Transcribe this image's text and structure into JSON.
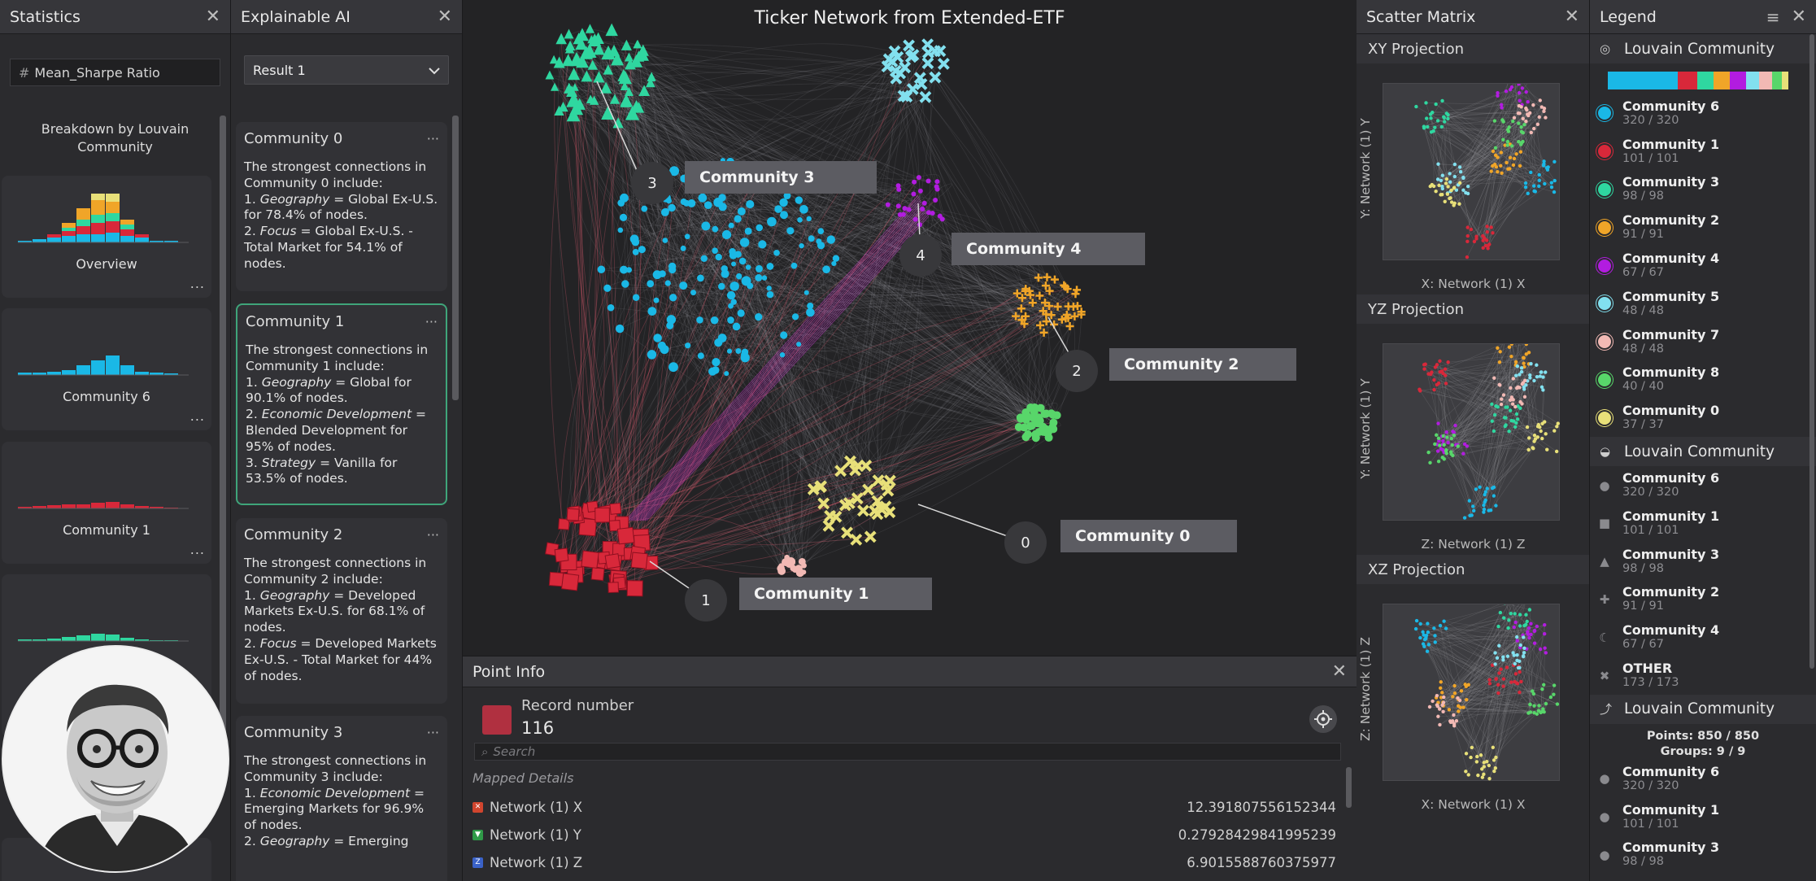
{
  "statistics": {
    "title": "Statistics",
    "field": "Mean_Sharpe Ratio",
    "breakdown_title": "Breakdown by Louvain Community",
    "cards": [
      {
        "label": "Overview"
      },
      {
        "label": "Community 6"
      },
      {
        "label": "Community 1"
      },
      {
        "label": ""
      }
    ],
    "more": "..."
  },
  "xai": {
    "title": "Explainable AI",
    "result_select": "Result 1",
    "communities": [
      {
        "name": "Community 0",
        "intro": "The strongest connections in Community 0 include:",
        "items": [
          {
            "num": "1.",
            "key": "Geography",
            "value": "Global Ex-U.S.",
            "pct": "for 78.4% of nodes."
          },
          {
            "num": "2.",
            "key": "Focus",
            "value": "Global Ex-U.S. - Total Market",
            "pct": "for 54.1% of nodes."
          }
        ]
      },
      {
        "name": "Community 1",
        "intro": "The strongest connections in Community 1 include:",
        "items": [
          {
            "num": "1.",
            "key": "Geography",
            "value": "Global",
            "pct": "for 90.1% of nodes."
          },
          {
            "num": "2.",
            "key": "Economic Development",
            "value": "Blended Development",
            "pct": "for 95% of nodes."
          },
          {
            "num": "3.",
            "key": "Strategy",
            "value": "Vanilla",
            "pct": "for 53.5% of nodes."
          }
        ]
      },
      {
        "name": "Community 2",
        "intro": "The strongest connections in Community 2 include:",
        "items": [
          {
            "num": "1.",
            "key": "Geography",
            "value": "Developed Markets Ex-U.S.",
            "pct": "for 68.1% of nodes."
          },
          {
            "num": "2.",
            "key": "Focus",
            "value": "Developed Markets Ex-U.S. - Total Market",
            "pct": "for 44% of nodes."
          }
        ]
      },
      {
        "name": "Community 3",
        "intro": "The strongest connections in Community 3 include:",
        "items": [
          {
            "num": "1.",
            "key": "Economic Development",
            "value": "Emerging Markets",
            "pct": "for 96.9% of nodes."
          },
          {
            "num": "2.",
            "key": "Geography",
            "value": "Emerging",
            "pct": ""
          }
        ]
      }
    ]
  },
  "graph": {
    "title": "Ticker Network from Extended-ETF",
    "callouts": [
      {
        "num": "3",
        "label": "Community 3"
      },
      {
        "num": "4",
        "label": "Community 4"
      },
      {
        "num": "2",
        "label": "Community 2"
      },
      {
        "num": "0",
        "label": "Community 0"
      },
      {
        "num": "1",
        "label": "Community 1"
      }
    ]
  },
  "point_info": {
    "title": "Point Info",
    "record_label": "Record number",
    "record_value": "116",
    "search_placeholder": "Search",
    "mapped_title": "Mapped Details",
    "rows": [
      {
        "key": "Network (1) X",
        "value": "12.391807556152344",
        "color": "#d0452e"
      },
      {
        "key": "Network (1) Y",
        "value": "0.27928429841995239",
        "color": "#2f9a48"
      },
      {
        "key": "Network (1) Z",
        "value": "6.9015588760375977",
        "color": "#3a62c8"
      }
    ]
  },
  "scatter": {
    "title": "Scatter Matrix",
    "projections": [
      {
        "name": "XY Projection",
        "xlabel": "X: Network (1) X",
        "ylabel": "Y: Network (1) Y"
      },
      {
        "name": "YZ Projection",
        "xlabel": "Z: Network (1) Z",
        "ylabel": "Y: Network (1) Y"
      },
      {
        "name": "XZ Projection",
        "xlabel": "X: Network (1) X",
        "ylabel": "Z: Network (1) Z"
      }
    ]
  },
  "legend": {
    "title": "Legend",
    "color_section": "Louvain Community",
    "shape_section": "Louvain Community",
    "size_section": "Louvain Community",
    "color_items": [
      {
        "name": "Community 6",
        "count": "320 / 320",
        "color": "#1ab8e6"
      },
      {
        "name": "Community 1",
        "count": "101 / 101",
        "color": "#d8283a"
      },
      {
        "name": "Community 3",
        "count": "98 / 98",
        "color": "#2fd7a0"
      },
      {
        "name": "Community 2",
        "count": "91 / 91",
        "color": "#f0a528"
      },
      {
        "name": "Community 4",
        "count": "67 / 67",
        "color": "#b21ce0"
      },
      {
        "name": "Community 5",
        "count": "48 / 48",
        "color": "#82e0ef"
      },
      {
        "name": "Community 7",
        "count": "48 / 48",
        "color": "#f2b9b4"
      },
      {
        "name": "Community 8",
        "count": "40 / 40",
        "color": "#58d66a"
      },
      {
        "name": "Community 0",
        "count": "37 / 37",
        "color": "#e8e079"
      }
    ],
    "shape_items": [
      {
        "name": "Community 6",
        "count": "320 / 320",
        "shape": "circle"
      },
      {
        "name": "Community 1",
        "count": "101 / 101",
        "shape": "square"
      },
      {
        "name": "Community 3",
        "count": "98 / 98",
        "shape": "triangle"
      },
      {
        "name": "Community 2",
        "count": "91 / 91",
        "shape": "plus"
      },
      {
        "name": "Community 4",
        "count": "67 / 67",
        "shape": "crescent"
      },
      {
        "name": "OTHER",
        "count": "173 / 173",
        "shape": "cross"
      }
    ],
    "summary_points": "Points: 850 / 850",
    "summary_groups": "Groups: 9 / 9",
    "size_items": [
      {
        "name": "Community 6",
        "count": "320 / 320"
      },
      {
        "name": "Community 1",
        "count": "101 / 101"
      },
      {
        "name": "Community 3",
        "count": "98 / 98"
      }
    ]
  }
}
